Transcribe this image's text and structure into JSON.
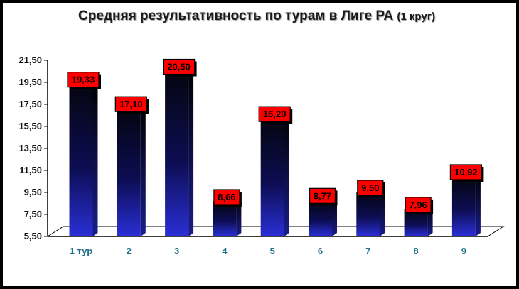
{
  "title": {
    "main": "Средняя результативность по турам в Лиге РА",
    "sub": "(1 круг)"
  },
  "colors": {
    "bar_top": "#05050f",
    "bar_bottom": "#2a2fd6",
    "label_bg": "#ff0000",
    "axis_label": "#1f6f8b"
  },
  "chart_data": {
    "type": "bar",
    "title": "Средняя результативность по турам в Лиге РА (1 круг)",
    "categories": [
      "1 тур",
      "2",
      "3",
      "4",
      "5",
      "6",
      "7",
      "8",
      "9"
    ],
    "values": [
      19.33,
      17.1,
      20.5,
      8.66,
      16.2,
      8.77,
      9.5,
      7.96,
      10.92
    ],
    "value_labels": [
      "19,33",
      "17,10",
      "20,50",
      "8,66",
      "16,20",
      "8,77",
      "9,50",
      "7,96",
      "10,92"
    ],
    "ylim": [
      5.5,
      21.5
    ],
    "yticks": [
      5.5,
      7.5,
      9.5,
      11.5,
      13.5,
      15.5,
      17.5,
      19.5,
      21.5
    ],
    "ytick_labels": [
      "5,50",
      "7,50",
      "9,50",
      "11,50",
      "13,50",
      "15,50",
      "17,50",
      "19,50",
      "21,50"
    ],
    "xlabel": "",
    "ylabel": "",
    "grid": false,
    "legend": false
  }
}
